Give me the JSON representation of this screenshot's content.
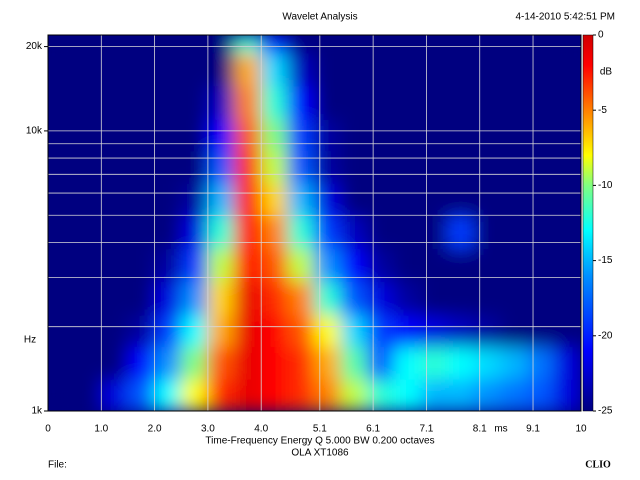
{
  "chart_data": {
    "type": "heatmap",
    "title": "Wavelet Analysis",
    "timestamp": "4-14-2010 5:42:51 PM",
    "xlabel": "Time-Frequency Energy  Q 5.000 BW 0.200 octaves",
    "subtitle": "OLA XT1086",
    "x_unit": "ms",
    "y_unit": "Hz",
    "colorbar_label": "dB",
    "footer_left": "File:",
    "footer_right": "CLIO",
    "xlim": [
      0,
      10
    ],
    "xticks": [
      0,
      {
        "value": 1,
        "label": "1.0"
      },
      {
        "value": 2,
        "label": "2.0"
      },
      {
        "value": 3,
        "label": "3.0"
      },
      {
        "value": 4,
        "label": "4.0"
      },
      5.1,
      6.1,
      7.1,
      8.1,
      9.1,
      10
    ],
    "ylim": [
      1000,
      22000
    ],
    "log_y": true,
    "yticks": [
      {
        "value": 1000,
        "label": "1k"
      },
      {
        "value": 10000,
        "label": "10k"
      },
      {
        "value": 20000,
        "label": "20k"
      }
    ],
    "yminor": [
      2000,
      3000,
      4000,
      5000,
      6000,
      7000,
      8000,
      9000
    ],
    "grid": true,
    "clim": [
      -25,
      0
    ],
    "cticks": [
      0,
      -5,
      -10,
      -15,
      -20,
      -25
    ],
    "colormap": [
      [
        -25,
        "#000080"
      ],
      [
        -21,
        "#0000ff"
      ],
      [
        -16,
        "#0090ff"
      ],
      [
        -13,
        "#00ffff"
      ],
      [
        -10,
        "#80ff80"
      ],
      [
        -8,
        "#ffff00"
      ],
      [
        -5,
        "#ff8000"
      ],
      [
        -2,
        "#ff0000"
      ],
      [
        0,
        "#d00000"
      ]
    ],
    "xbins": [
      0,
      0.5,
      1,
      1.5,
      2,
      2.5,
      3,
      3.5,
      4,
      4.5,
      5,
      5.5,
      6,
      6.5,
      7,
      7.5,
      8,
      8.5,
      9,
      9.5,
      10
    ],
    "ybins": [
      1000,
      1300,
      1700,
      2200,
      2900,
      3800,
      5000,
      6500,
      8500,
      11000,
      14500,
      19000,
      22000
    ],
    "values": [
      [
        -25,
        -25,
        -22,
        -18,
        -13,
        -8,
        -3,
        -1,
        -2,
        -3,
        -5,
        -9,
        -12,
        -13,
        -15,
        -15,
        -16,
        -17,
        -18,
        -22
      ],
      [
        -25,
        -25,
        -25,
        -21,
        -16,
        -10,
        -4,
        -1,
        -2,
        -3,
        -6,
        -11,
        -18,
        -13,
        -12,
        -13,
        -14,
        -15,
        -17,
        -22
      ],
      [
        -25,
        -25,
        -25,
        -24,
        -19,
        -13,
        -6,
        -1,
        -2,
        -4,
        -8,
        -14,
        -19,
        -21,
        -22,
        -23,
        -24,
        -25,
        -25,
        -25
      ],
      [
        -25,
        -25,
        -25,
        -25,
        -22,
        -16,
        -7,
        -1,
        -3,
        -5,
        -12,
        -18,
        -22,
        -24,
        -25,
        -25,
        -25,
        -25,
        -25,
        -25
      ],
      [
        -25,
        -25,
        -25,
        -25,
        -24,
        -19,
        -9,
        -2,
        -4,
        -9,
        -16,
        -21,
        -24,
        -25,
        -25,
        -25,
        -25,
        -25,
        -25,
        -25
      ],
      [
        -25,
        -25,
        -25,
        -25,
        -25,
        -22,
        -12,
        -2,
        -5,
        -12,
        -19,
        -23,
        -25,
        -25,
        -25,
        -19,
        -25,
        -25,
        -25,
        -25
      ],
      [
        -25,
        -25,
        -25,
        -25,
        -25,
        -24,
        -15,
        -2,
        -7,
        -15,
        -22,
        -25,
        -25,
        -25,
        -25,
        -25,
        -25,
        -25,
        -25,
        -25
      ],
      [
        -25,
        -25,
        -25,
        -25,
        -25,
        -25,
        -18,
        -3,
        -9,
        -18,
        -24,
        -25,
        -25,
        -25,
        -25,
        -25,
        -25,
        -25,
        -25,
        -25
      ],
      [
        -25,
        -25,
        -25,
        -25,
        -25,
        -25,
        -21,
        -4,
        -10,
        -19,
        -24,
        -25,
        -25,
        -25,
        -25,
        -25,
        -25,
        -25,
        -25,
        -25
      ],
      [
        -25,
        -25,
        -25,
        -25,
        -25,
        -25,
        -23,
        -5,
        -12,
        -21,
        -25,
        -25,
        -25,
        -25,
        -25,
        -25,
        -25,
        -25,
        -25,
        -25
      ],
      [
        -25,
        -25,
        -25,
        -25,
        -25,
        -25,
        -25,
        -6,
        -14,
        -23,
        -25,
        -25,
        -25,
        -25,
        -25,
        -25,
        -25,
        -25,
        -25,
        -25
      ],
      [
        -25,
        -25,
        -25,
        -25,
        -25,
        -25,
        -25,
        -12,
        -20,
        -25,
        -25,
        -25,
        -25,
        -25,
        -25,
        -25,
        -25,
        -25,
        -25,
        -25
      ]
    ]
  }
}
